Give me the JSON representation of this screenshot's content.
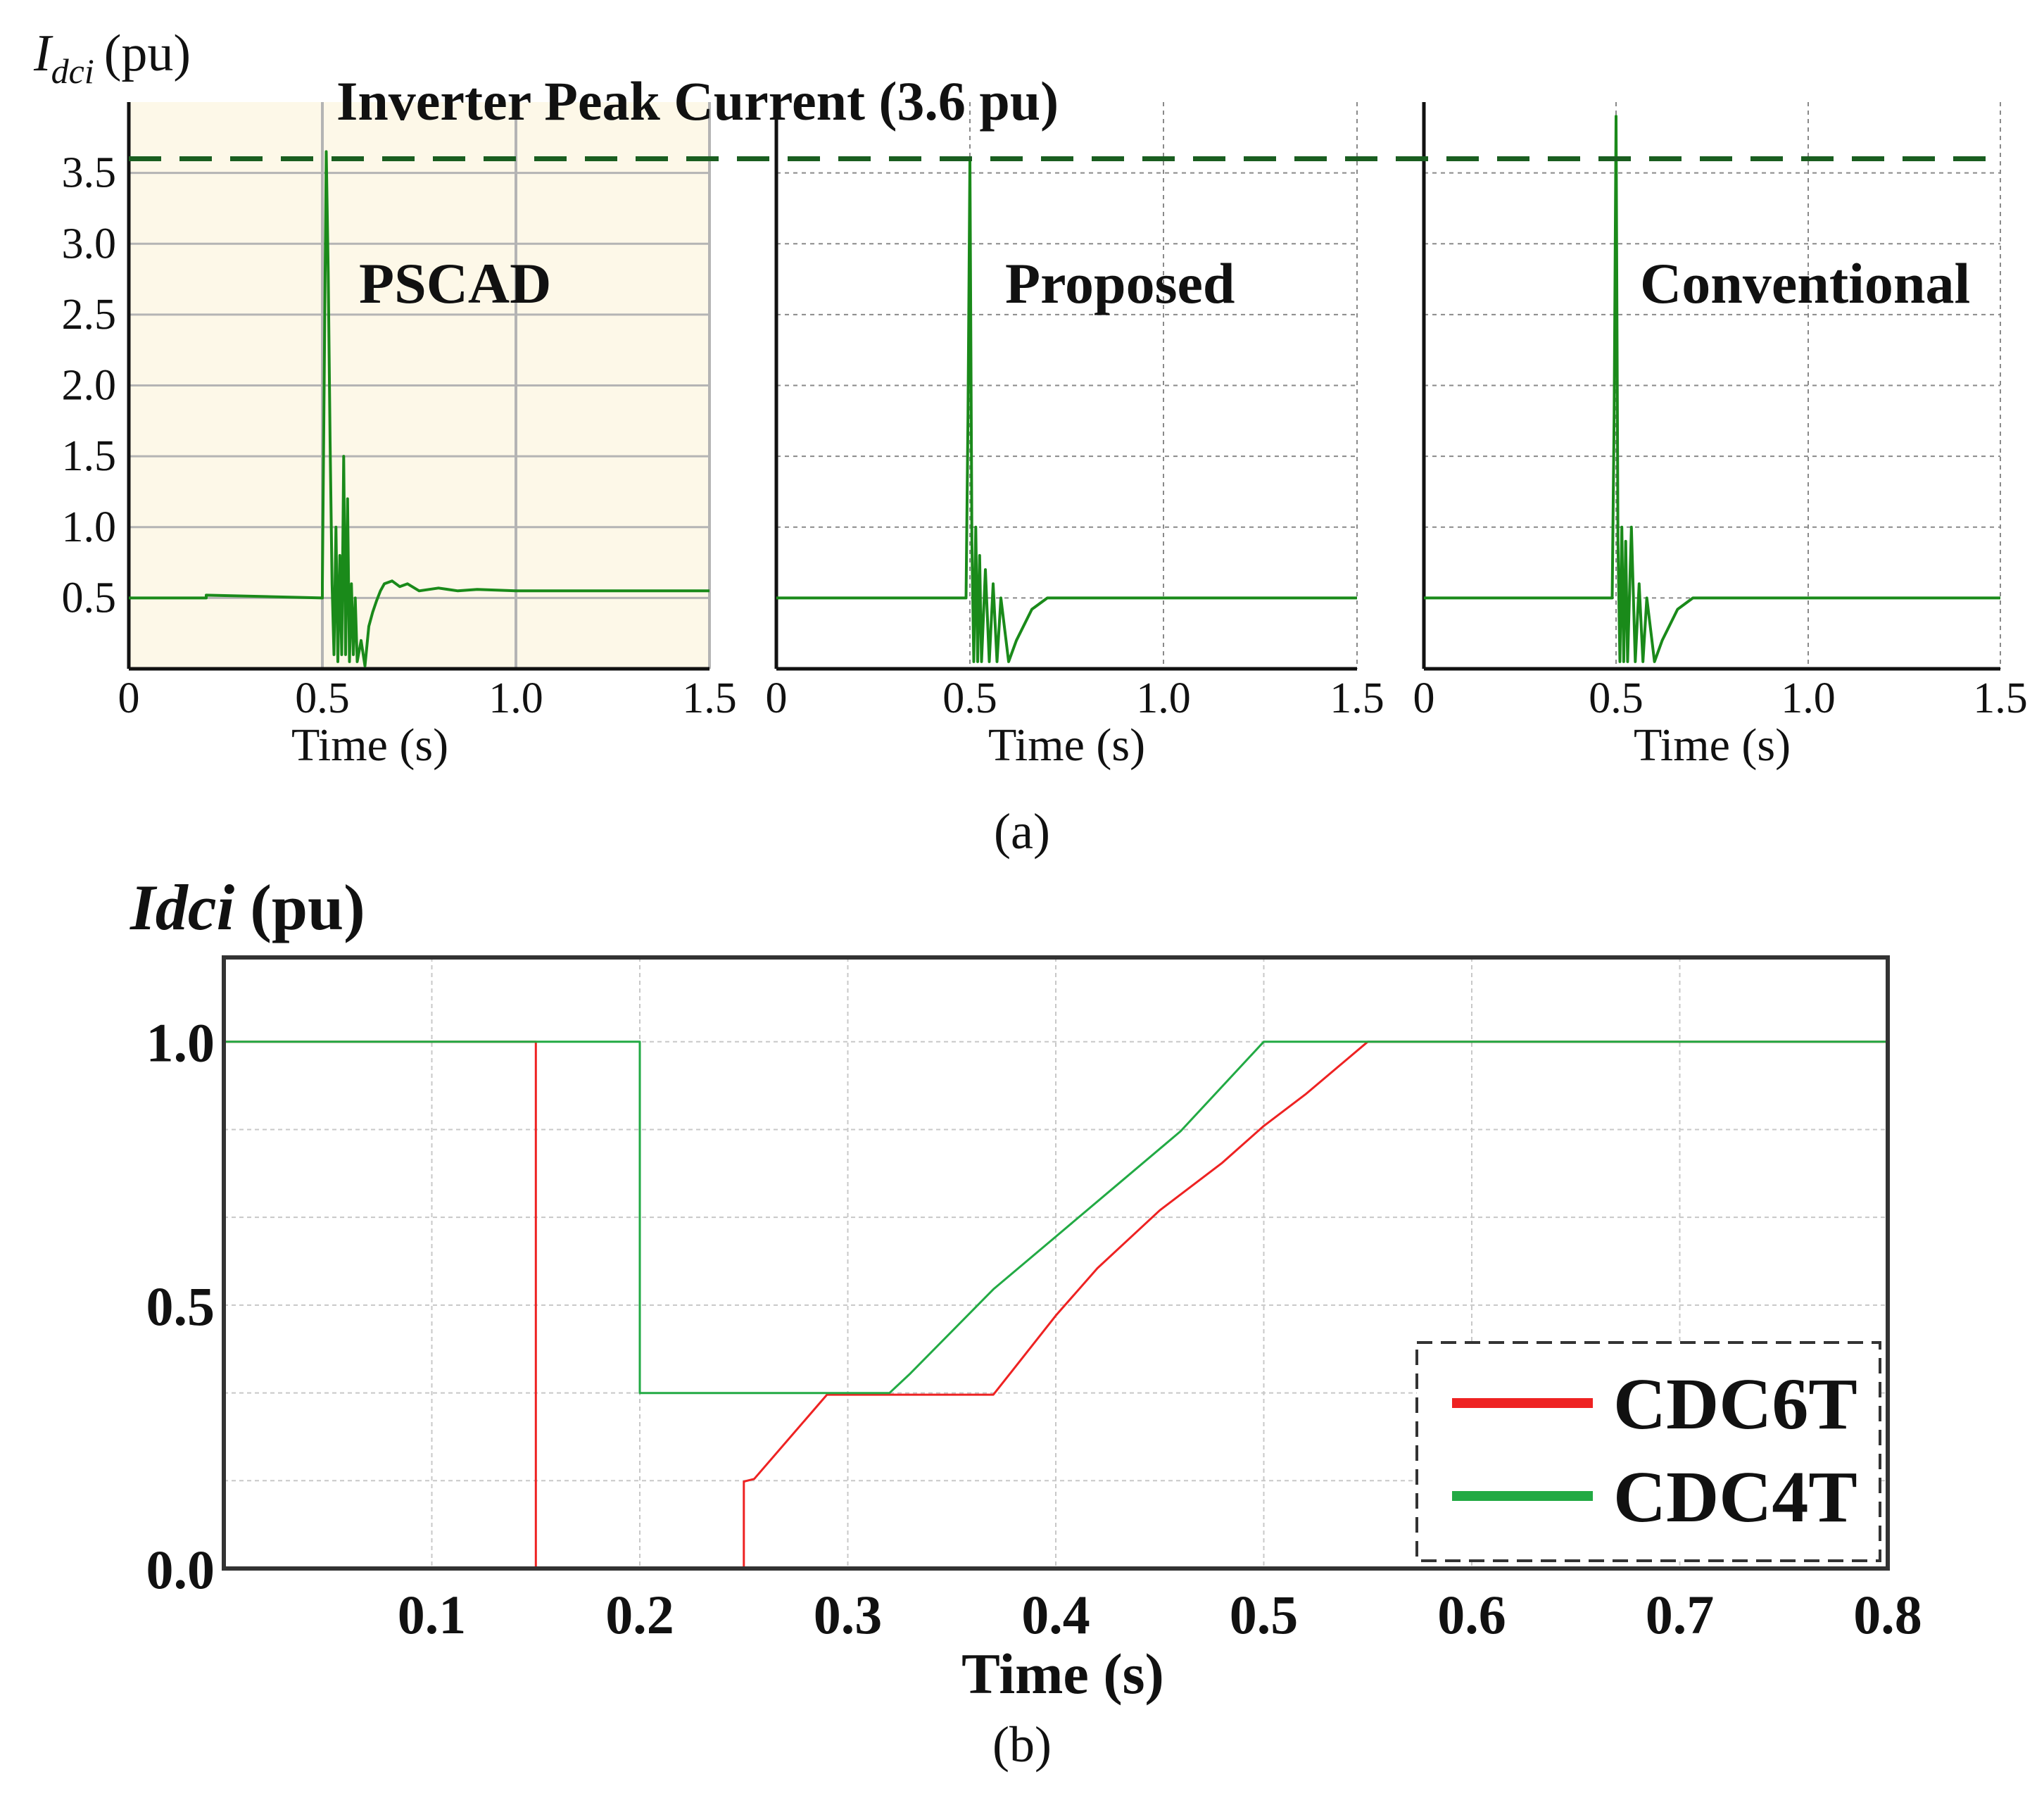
{
  "chart_data": [
    {
      "type": "line",
      "panel_label": "(a)",
      "ylabel": {
        "symbol": "I",
        "subscript": "dci",
        "unit": "(pu)"
      },
      "xlabel": "Time (s)",
      "xlim": [
        0,
        1.5
      ],
      "ylim": [
        0,
        4.0
      ],
      "xticks": [
        {
          "v": 0,
          "label": "0"
        },
        {
          "v": 0.5,
          "label": "0.5"
        },
        {
          "v": 1.0,
          "label": "1.0"
        },
        {
          "v": 1.5,
          "label": "1.5"
        }
      ],
      "yticks": [
        {
          "v": 0.5,
          "label": "0.5"
        },
        {
          "v": 1.0,
          "label": "1.0"
        },
        {
          "v": 1.5,
          "label": "1.5"
        },
        {
          "v": 2.0,
          "label": "2.0"
        },
        {
          "v": 2.5,
          "label": "2.5"
        },
        {
          "v": 3.0,
          "label": "3.0"
        },
        {
          "v": 3.5,
          "label": "3.5"
        }
      ],
      "reference_line": {
        "value": 3.6,
        "label": "Inverter Peak Current (3.6 pu)",
        "color": "#1a5e20",
        "style": "dashed"
      },
      "line_color": "#1a8a1a",
      "subplots": [
        {
          "title": "PSCAD",
          "background": "#fdf8e8",
          "x": [
            0,
            0.2,
            0.2,
            0.5,
            0.5,
            0.51,
            0.515,
            0.52,
            0.525,
            0.53,
            0.535,
            0.54,
            0.545,
            0.55,
            0.555,
            0.56,
            0.565,
            0.57,
            0.575,
            0.58,
            0.585,
            0.59,
            0.6,
            0.61,
            0.62,
            0.63,
            0.64,
            0.65,
            0.66,
            0.68,
            0.7,
            0.72,
            0.75,
            0.8,
            0.85,
            0.9,
            1.0,
            1.2,
            1.5
          ],
          "y": [
            0.5,
            0.5,
            0.52,
            0.5,
            0.6,
            3.65,
            2.8,
            1.6,
            0.6,
            0.1,
            1.0,
            0.05,
            0.8,
            0.1,
            1.5,
            0.1,
            1.2,
            0.05,
            0.6,
            0.1,
            0.5,
            0.05,
            0.2,
            0.02,
            0.3,
            0.4,
            0.48,
            0.55,
            0.6,
            0.62,
            0.58,
            0.6,
            0.55,
            0.57,
            0.55,
            0.56,
            0.55,
            0.55,
            0.55
          ]
        },
        {
          "title": "Proposed",
          "background": "#ffffff",
          "x": [
            0,
            0.49,
            0.495,
            0.5,
            0.505,
            0.51,
            0.515,
            0.52,
            0.525,
            0.53,
            0.54,
            0.55,
            0.56,
            0.57,
            0.58,
            0.6,
            0.62,
            0.66,
            0.7,
            0.75,
            1.0,
            1.5
          ],
          "y": [
            0.5,
            0.5,
            1.8,
            3.6,
            0.9,
            0.05,
            1.0,
            0.05,
            0.8,
            0.05,
            0.7,
            0.05,
            0.6,
            0.05,
            0.5,
            0.05,
            0.2,
            0.42,
            0.5,
            0.5,
            0.5,
            0.5
          ]
        },
        {
          "title": "Conventional",
          "background": "#ffffff",
          "x": [
            0,
            0.49,
            0.495,
            0.5,
            0.505,
            0.51,
            0.515,
            0.52,
            0.525,
            0.53,
            0.54,
            0.55,
            0.56,
            0.57,
            0.58,
            0.6,
            0.62,
            0.66,
            0.7,
            0.75,
            1.0,
            1.5
          ],
          "y": [
            0.5,
            0.5,
            1.8,
            3.9,
            0.9,
            0.05,
            1.0,
            0.05,
            0.9,
            0.05,
            1.0,
            0.05,
            0.6,
            0.05,
            0.5,
            0.05,
            0.2,
            0.42,
            0.5,
            0.5,
            0.5,
            0.5
          ]
        }
      ]
    },
    {
      "type": "line",
      "panel_label": "(b)",
      "ylabel": {
        "symbol": "Idci",
        "unit": "(pu)"
      },
      "xlabel": "Time (s)",
      "xlim": [
        0,
        0.8
      ],
      "ylim": [
        0,
        1.0
      ],
      "xticks": [
        {
          "v": 0.1,
          "label": "0.1"
        },
        {
          "v": 0.2,
          "label": "0.2"
        },
        {
          "v": 0.3,
          "label": "0.3"
        },
        {
          "v": 0.4,
          "label": "0.4"
        },
        {
          "v": 0.5,
          "label": "0.5"
        },
        {
          "v": 0.6,
          "label": "0.6"
        },
        {
          "v": 0.7,
          "label": "0.7"
        },
        {
          "v": 0.8,
          "label": "0.8"
        }
      ],
      "yticks": [
        {
          "v": 0.0,
          "label": "0.0"
        },
        {
          "v": 0.5,
          "label": "0.5"
        },
        {
          "v": 1.0,
          "label": "1.0"
        }
      ],
      "legend_position": "bottom-right",
      "series": [
        {
          "name": "CDC6T",
          "color": "#ee2222",
          "x": [
            0,
            0.15,
            0.15,
            0.25,
            0.25,
            0.255,
            0.29,
            0.36,
            0.37,
            0.38,
            0.4,
            0.42,
            0.45,
            0.48,
            0.5,
            0.52,
            0.55,
            0.8
          ],
          "y": [
            1.0,
            1.0,
            0.0,
            0.0,
            0.165,
            0.17,
            0.33,
            0.33,
            0.33,
            0.38,
            0.48,
            0.57,
            0.68,
            0.77,
            0.84,
            0.9,
            1.0,
            1.0
          ]
        },
        {
          "name": "CDC4T",
          "color": "#22aa44",
          "x": [
            0,
            0.1,
            0.2,
            0.2,
            0.32,
            0.33,
            0.35,
            0.37,
            0.4,
            0.43,
            0.46,
            0.5,
            0.8
          ],
          "y": [
            1.0,
            1.0,
            1.0,
            0.333,
            0.333,
            0.37,
            0.45,
            0.53,
            0.63,
            0.73,
            0.83,
            1.0,
            1.0
          ]
        }
      ]
    }
  ]
}
